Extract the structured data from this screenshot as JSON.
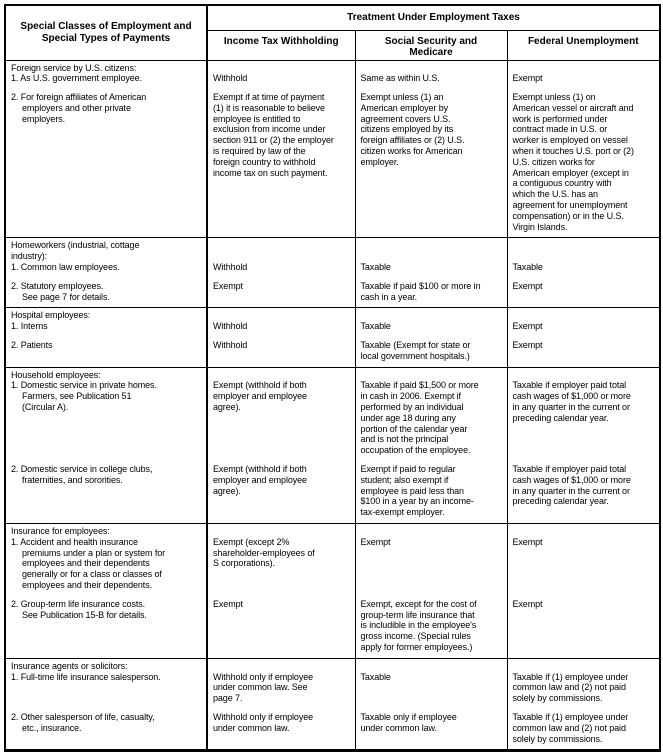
{
  "header": {
    "col1": "Special Classes of Employment and\nSpecial Types of Payments",
    "treatment": "Treatment Under Employment Taxes",
    "columns": [
      "Income Tax Withholding",
      "Social Security and\nMedicare",
      "Federal Unemployment"
    ]
  },
  "sections": [
    {
      "title": "Foreign service by U.S. citizens:",
      "items": [
        {
          "label": "1. As U.S. government employee.",
          "income_tax_withholding": "Withhold",
          "social_security_medicare": "Same as within U.S.",
          "federal_unemployment": "Exempt"
        },
        {
          "label": "2. For foreign affiliates of American\nemployers and other private\nemployers.",
          "income_tax_withholding": "Exempt if at time of payment\n(1) it is reasonable to believe\nemployee is entitled to\nexclusion from income under\nsection 911 or (2) the employer\nis required by law of the\nforeign country to withhold\nincome tax on such payment.",
          "social_security_medicare": "Exempt unless (1) an\nAmerican employer by\nagreement covers U.S.\ncitizens employed by its\nforeign affiliates or (2) U.S.\ncitizen works for American\nemployer.",
          "federal_unemployment": "Exempt unless (1) on\nAmerican vessel or aircraft and\nwork is performed under\ncontract made in U.S. or\nworker is employed on vessel\nwhen it touches U.S. port or (2)\nU.S. citizen works for\nAmerican employer (except in\na contiguous country with\nwhich the U.S. has an\nagreement for unemployment\ncompensation) or in the U.S.\nVirgin Islands."
        }
      ]
    },
    {
      "title": "Homeworkers (industrial, cottage\nindustry):",
      "items": [
        {
          "label": "1. Common law employees.",
          "income_tax_withholding": "Withhold",
          "social_security_medicare": "Taxable",
          "federal_unemployment": "Taxable"
        },
        {
          "label": "2. Statutory employees.\nSee page 7 for details.",
          "income_tax_withholding": "Exempt",
          "social_security_medicare": "Taxable if paid $100 or more in\ncash in a year.",
          "federal_unemployment": "Exempt"
        }
      ]
    },
    {
      "title": "Hospital employees:",
      "items": [
        {
          "label": "1. Interns",
          "income_tax_withholding": "Withhold",
          "social_security_medicare": "Taxable",
          "federal_unemployment": "Exempt"
        },
        {
          "label": "2. Patients",
          "income_tax_withholding": "Withhold",
          "social_security_medicare": "Taxable (Exempt for state or\nlocal government hospitals.)",
          "federal_unemployment": "Exempt"
        }
      ]
    },
    {
      "title": "Household employees:",
      "items": [
        {
          "label": "1. Domestic service in private homes.\nFarmers, see Publication 51\n(Circular A).",
          "income_tax_withholding": "Exempt (withhold if both\nemployer and employee\nagree).",
          "social_security_medicare": "Taxable if paid $1,500 or more\nin cash in 2006. Exempt if\nperformed by an individual\nunder age 18 during any\nportion of the calendar year\nand is not the principal\noccupation of the employee.",
          "federal_unemployment": "Taxable if employer paid total\ncash wages of $1,000 or more\nin any quarter in the current or\npreceding calendar year."
        },
        {
          "label": "2. Domestic service in college clubs,\nfraternities, and sororities.",
          "income_tax_withholding": "Exempt (withhold if both\nemployer and employee\nagree).",
          "social_security_medicare": "Exempt if paid to regular\nstudent; also exempt if\nemployee is paid less than\n$100 in a year by an income-\ntax-exempt employer.",
          "federal_unemployment": "Taxable if employer paid total\ncash wages of $1,000 or more\nin any quarter in the current or\npreceding calendar year."
        }
      ]
    },
    {
      "title": "Insurance for employees:",
      "items": [
        {
          "label": "1. Accident and health insurance\npremiums under a plan or system for\nemployees and their dependents\ngenerally or for a class or classes of\nemployees and their dependents.",
          "income_tax_withholding": "Exempt (except 2%\nshareholder-employees of\nS corporations).",
          "social_security_medicare": "Exempt",
          "federal_unemployment": "Exempt"
        },
        {
          "label": "2. Group-term life insurance costs.\nSee Publication 15-B for details.",
          "income_tax_withholding": "Exempt",
          "social_security_medicare": "Exempt, except for the cost of\ngroup-term life insurance that\nis includible in the employee's\ngross income. (Special rules\napply for former employees.)",
          "federal_unemployment": "Exempt"
        }
      ]
    },
    {
      "title": "Insurance agents or solicitors:",
      "items": [
        {
          "label": "1. Full-time life insurance salesperson.",
          "income_tax_withholding": "Withhold only if employee\nunder common law. See\npage 7.",
          "social_security_medicare": "Taxable",
          "federal_unemployment": "Taxable if (1) employee under\ncommon law and (2) not paid\nsolely by commissions."
        },
        {
          "label": "2. Other salesperson of life, casualty,\netc., insurance.",
          "income_tax_withholding": "Withhold only if employee\nunder common law.",
          "social_security_medicare": "Taxable only if employee\nunder common law.",
          "federal_unemployment": "Taxable if (1) employee under\ncommon law and (2) not paid\nsolely by commissions."
        }
      ]
    }
  ]
}
